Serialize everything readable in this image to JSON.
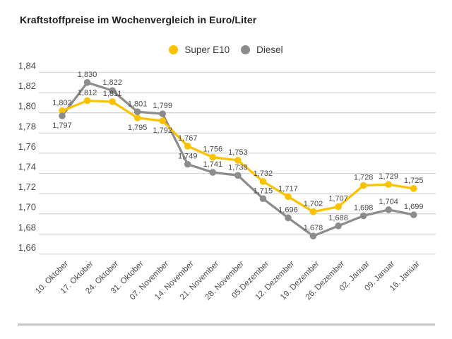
{
  "title": "Kraftstoffpreise im Wochenvergleich in Euro/Liter",
  "chart_data": {
    "type": "line",
    "title": "Kraftstoffpreise im Wochenvergleich in Euro/Liter",
    "unit": "Euro/Liter",
    "categories": [
      "10. Oktober",
      "17. Oktober",
      "24. Oktober",
      "31. Oktober",
      "07. November",
      "14. November",
      "21. November",
      "28. November",
      "05.Dezember",
      "12. Dezember",
      "19. Dezember",
      "26. Dezember",
      "02. Januar",
      "09. Januar",
      "16. Januar"
    ],
    "series": [
      {
        "name": "Super E10",
        "color": "#FCC200",
        "values": [
          1.802,
          1.812,
          1.811,
          1.795,
          1.792,
          1.767,
          1.756,
          1.753,
          1.732,
          1.717,
          1.702,
          1.707,
          1.728,
          1.729,
          1.725
        ]
      },
      {
        "name": "Diesel",
        "color": "#8C8C8C",
        "values": [
          1.797,
          1.83,
          1.822,
          1.801,
          1.799,
          1.749,
          1.741,
          1.738,
          1.715,
          1.696,
          1.678,
          1.688,
          1.698,
          1.704,
          1.699
        ]
      }
    ],
    "ylim": [
      1.66,
      1.84
    ],
    "ytick_step": 0.02,
    "ytick_labels": [
      "1,84",
      "1,82",
      "1,80",
      "1,78",
      "1,76",
      "1,74",
      "1,72",
      "1,70",
      "1,68",
      "1,66"
    ],
    "decimal_separator": ",",
    "grid": true,
    "legend_position": "top-center",
    "value_labels_shown": true,
    "colors": {
      "grid": "#D7D7D7",
      "axis_text": "#4D4D4D",
      "value_label_text": "#4A4A4A",
      "title_text": "#1D1D1B",
      "divider": "#C6C6C6",
      "background": "#FFFFFF"
    }
  }
}
